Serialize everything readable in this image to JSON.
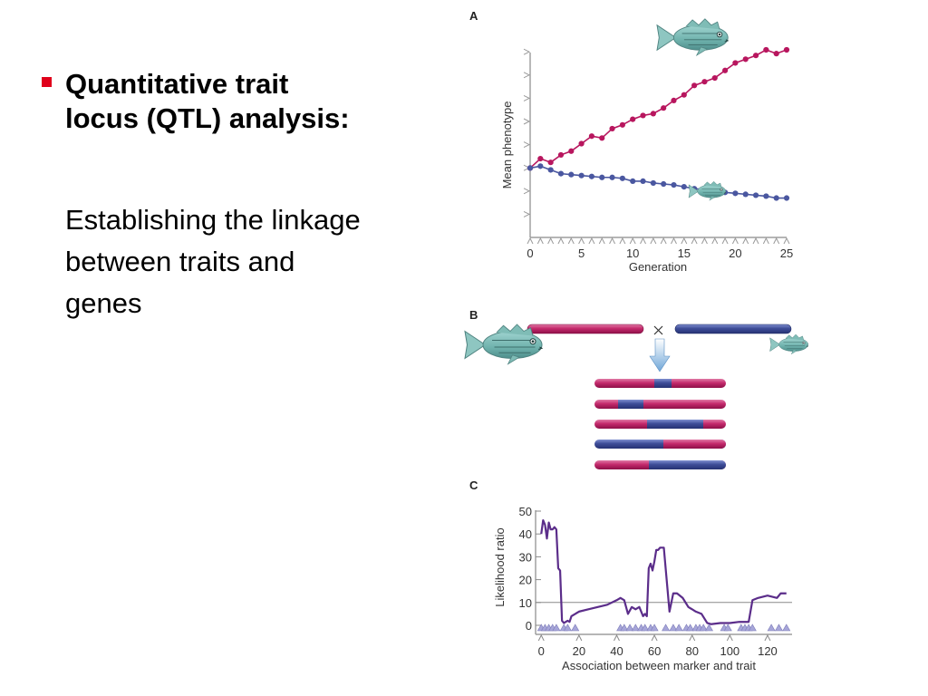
{
  "slide": {
    "heading_line1": "Quantitative trait",
    "heading_line2": "locus (QTL) analysis:",
    "body_line1": "Establishing the linkage",
    "body_line2": "between traits and",
    "body_line3": "genes"
  },
  "panels": {
    "a": "A",
    "b": "B",
    "c": "C"
  },
  "colors": {
    "bullet": "#e0001b",
    "magenta": "#b8165e",
    "blue": "#4a57a0",
    "purple": "#5b2d8a",
    "marker": "#a7a6d9"
  },
  "chart_data": [
    {
      "type": "line",
      "panel": "A",
      "xlabel": "Generation",
      "ylabel": "Mean phenotype",
      "xlim": [
        0,
        25
      ],
      "x_ticks": [
        0,
        5,
        10,
        15,
        20,
        25
      ],
      "ylim": [
        0,
        10
      ],
      "grid": false,
      "series": [
        {
          "color": "#b8165e",
          "x": [
            0,
            1,
            2,
            3,
            4,
            5,
            6,
            7,
            8,
            9,
            10,
            11,
            12,
            13,
            14,
            15,
            16,
            17,
            18,
            19,
            20,
            21,
            22,
            23,
            24,
            25
          ],
          "values": [
            3.7,
            4.2,
            4.0,
            4.4,
            4.6,
            5.0,
            5.4,
            5.3,
            5.8,
            6.0,
            6.3,
            6.5,
            6.6,
            6.9,
            7.3,
            7.6,
            8.1,
            8.3,
            8.5,
            8.9,
            9.3,
            9.5,
            9.7,
            10.0,
            9.8,
            10.0
          ]
        },
        {
          "color": "#4a57a0",
          "x": [
            0,
            1,
            2,
            3,
            4,
            5,
            6,
            7,
            8,
            9,
            10,
            11,
            12,
            13,
            14,
            15,
            16,
            17,
            18,
            19,
            20,
            21,
            22,
            23,
            24,
            25
          ],
          "values": [
            3.7,
            3.8,
            3.6,
            3.4,
            3.35,
            3.3,
            3.25,
            3.2,
            3.2,
            3.15,
            3.0,
            3.0,
            2.9,
            2.85,
            2.8,
            2.7,
            2.6,
            2.55,
            2.4,
            2.4,
            2.35,
            2.3,
            2.25,
            2.2,
            2.1,
            2.1
          ]
        }
      ]
    },
    {
      "type": "line",
      "panel": "C",
      "xlabel": "Association between marker and trait",
      "ylabel": "Likelihood ratio",
      "xlim": [
        -3,
        133
      ],
      "x_ticks": [
        0,
        20,
        40,
        60,
        80,
        100,
        120
      ],
      "ylim": [
        0,
        50
      ],
      "y_ticks": [
        0,
        10,
        20,
        30,
        40,
        50
      ],
      "threshold": 10,
      "grid": false,
      "series": [
        {
          "color": "#5b2d8a",
          "x": [
            0,
            1,
            2,
            3,
            4,
            5,
            6,
            7,
            8,
            9,
            10,
            11,
            12,
            13,
            14,
            15,
            16,
            18,
            20,
            25,
            30,
            35,
            40,
            42,
            44,
            46,
            48,
            50,
            52,
            54,
            55,
            56,
            57,
            58,
            59,
            60,
            61,
            62,
            63,
            65,
            68,
            70,
            72,
            75,
            78,
            80,
            82,
            85,
            88,
            90,
            95,
            100,
            105,
            110,
            112,
            115,
            120,
            125,
            127,
            130
          ],
          "values": [
            40,
            46,
            44,
            38,
            45,
            42,
            42,
            43,
            42,
            25,
            24,
            2,
            1,
            1.5,
            2,
            1.5,
            4,
            5,
            6,
            7,
            8,
            9,
            11,
            12,
            11,
            5,
            8,
            7,
            8,
            4,
            5,
            4,
            25,
            27,
            24,
            28,
            33,
            33,
            34,
            34,
            6,
            14,
            14,
            12,
            8,
            7,
            6,
            5,
            1,
            0.5,
            1,
            1,
            1.5,
            1.5,
            11,
            12,
            13,
            12,
            14,
            14
          ]
        }
      ],
      "markers": [
        0,
        2,
        4,
        6,
        8,
        12,
        14,
        18,
        42,
        44,
        47,
        50,
        53,
        55,
        58,
        60,
        66,
        70,
        73,
        77,
        79,
        82,
        84,
        86,
        89,
        97,
        99,
        106,
        108,
        110,
        112,
        122,
        126,
        130
      ]
    }
  ]
}
